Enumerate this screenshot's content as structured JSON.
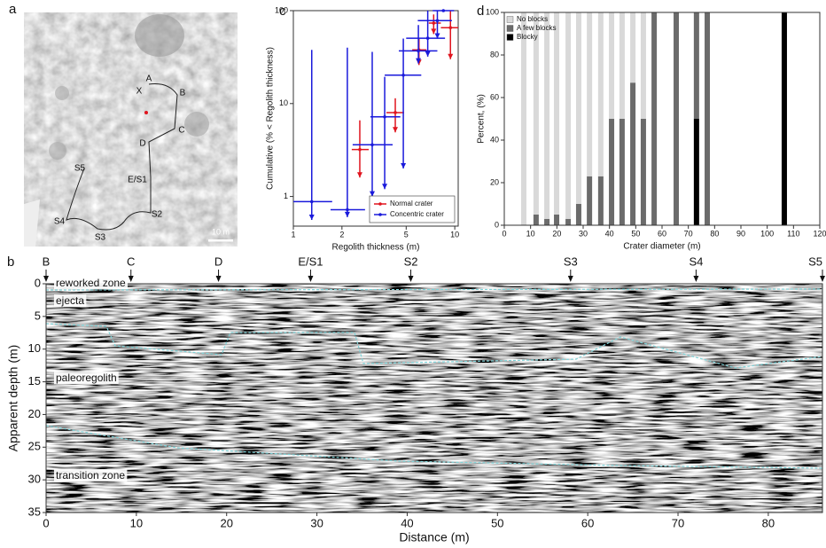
{
  "figure": {
    "panel_labels": [
      "a",
      "b",
      "c",
      "d"
    ]
  },
  "map": {
    "labels": [
      "A",
      "B",
      "X",
      "C",
      "D",
      "E/S1",
      "S2",
      "S3",
      "S4",
      "S5"
    ],
    "scale_bar": "10 m"
  },
  "chart_data": [
    {
      "type": "errorbar",
      "x_label": "Regolith thickness (m)",
      "y_label": "Cumulative (% < Regolith thickness)",
      "log_x": true,
      "log_y": true,
      "xlim": [
        1,
        10.5
      ],
      "ylim": [
        0.48,
        100
      ],
      "xticks": [
        1,
        2,
        5,
        10
      ],
      "yticks": [
        1,
        10,
        100
      ],
      "legend": "lower right",
      "series": [
        {
          "name": "Normal crater",
          "color": "#e0141e",
          "x": [
            2.58,
            4.28,
            6.0,
            7.4,
            9.4
          ],
          "y": [
            3.2,
            8.0,
            37.8,
            73.5,
            65.6
          ],
          "x_low": [
            2.3,
            3.77,
            5.45,
            6.9,
            8.2
          ],
          "x_high": [
            2.93,
            4.85,
            6.67,
            8.2,
            10.5
          ],
          "y_low": [
            1.6,
            4.9,
            26,
            56,
            30
          ],
          "y_high": [
            6.6,
            11.4,
            50,
            91,
            100
          ]
        },
        {
          "name": "Concentric crater",
          "color": "#1a1adb",
          "x": [
            1.3,
            2.16,
            3.08,
            3.68,
            4.8,
            5.95,
            6.8,
            7.8,
            8.5
          ],
          "y": [
            0.88,
            0.72,
            3.6,
            7.2,
            20.2,
            36.9,
            50.5,
            78,
            100
          ],
          "x_low": [
            1.0,
            1.7,
            2.33,
            3.0,
            3.68,
            4.5,
            5.0,
            5.9,
            7.3
          ],
          "x_high": [
            1.74,
            2.78,
            4.12,
            4.6,
            6.2,
            7.8,
            8.7,
            9.6,
            9.9
          ],
          "y_low": [
            0.56,
            0.6,
            1.0,
            1.2,
            2.0,
            27,
            32,
            50,
            100
          ],
          "y_high": [
            37.8,
            40,
            36,
            19.4,
            50,
            70,
            100,
            100,
            100
          ]
        }
      ]
    },
    {
      "type": "stacked_bar",
      "x_label": "Crater diameter (m)",
      "y_label": "Percent, (%)",
      "xlim": [
        0,
        120
      ],
      "ylim": [
        0,
        100
      ],
      "xticks": [
        0,
        10,
        20,
        30,
        40,
        50,
        60,
        70,
        80,
        90,
        100,
        110,
        120
      ],
      "yticks": [
        0,
        20,
        40,
        60,
        80,
        100
      ],
      "legend": "upper left",
      "x": [
        7.4,
        12.1,
        16.2,
        19.9,
        24.3,
        28.3,
        32.4,
        36.7,
        40.8,
        44.8,
        48.9,
        52.9,
        57,
        65.4,
        73.1,
        77.2,
        106.5
      ],
      "series": [
        {
          "name": "No blocks",
          "color": "#d9d9d9",
          "values": [
            100,
            95,
            97,
            95,
            97,
            90,
            77,
            77,
            50,
            50,
            33,
            50,
            0,
            0,
            0,
            0,
            0
          ]
        },
        {
          "name": "A few blocks",
          "color": "#6b6b6b",
          "values": [
            0,
            5,
            3,
            5,
            3,
            10,
            23,
            23,
            50,
            50,
            67,
            50,
            100,
            100,
            50,
            100,
            0
          ]
        },
        {
          "name": "Blocky",
          "color": "#000000",
          "values": [
            0,
            0,
            0,
            0,
            0,
            0,
            0,
            0,
            0,
            0,
            0,
            0,
            0,
            0,
            50,
            0,
            100
          ]
        }
      ]
    },
    {
      "type": "radargram",
      "x_label": "Distance (m)",
      "y_label": "Apparent depth (m)",
      "xlim": [
        0,
        86
      ],
      "ylim": [
        0,
        35
      ],
      "xticks": [
        0,
        10,
        20,
        30,
        40,
        50,
        60,
        70,
        80
      ],
      "yticks": [
        0,
        5,
        10,
        15,
        20,
        25,
        30,
        35
      ],
      "markers": {
        "labels": [
          "B",
          "C",
          "D",
          "E/S1",
          "S2",
          "S3",
          "S4",
          "S5"
        ],
        "x": [
          0,
          9.4,
          19.1,
          29.3,
          40.4,
          58.1,
          72,
          86
        ]
      },
      "zones": [
        "reworked zone",
        "ejecta",
        "paleoregolith",
        "transition zone"
      ]
    }
  ]
}
